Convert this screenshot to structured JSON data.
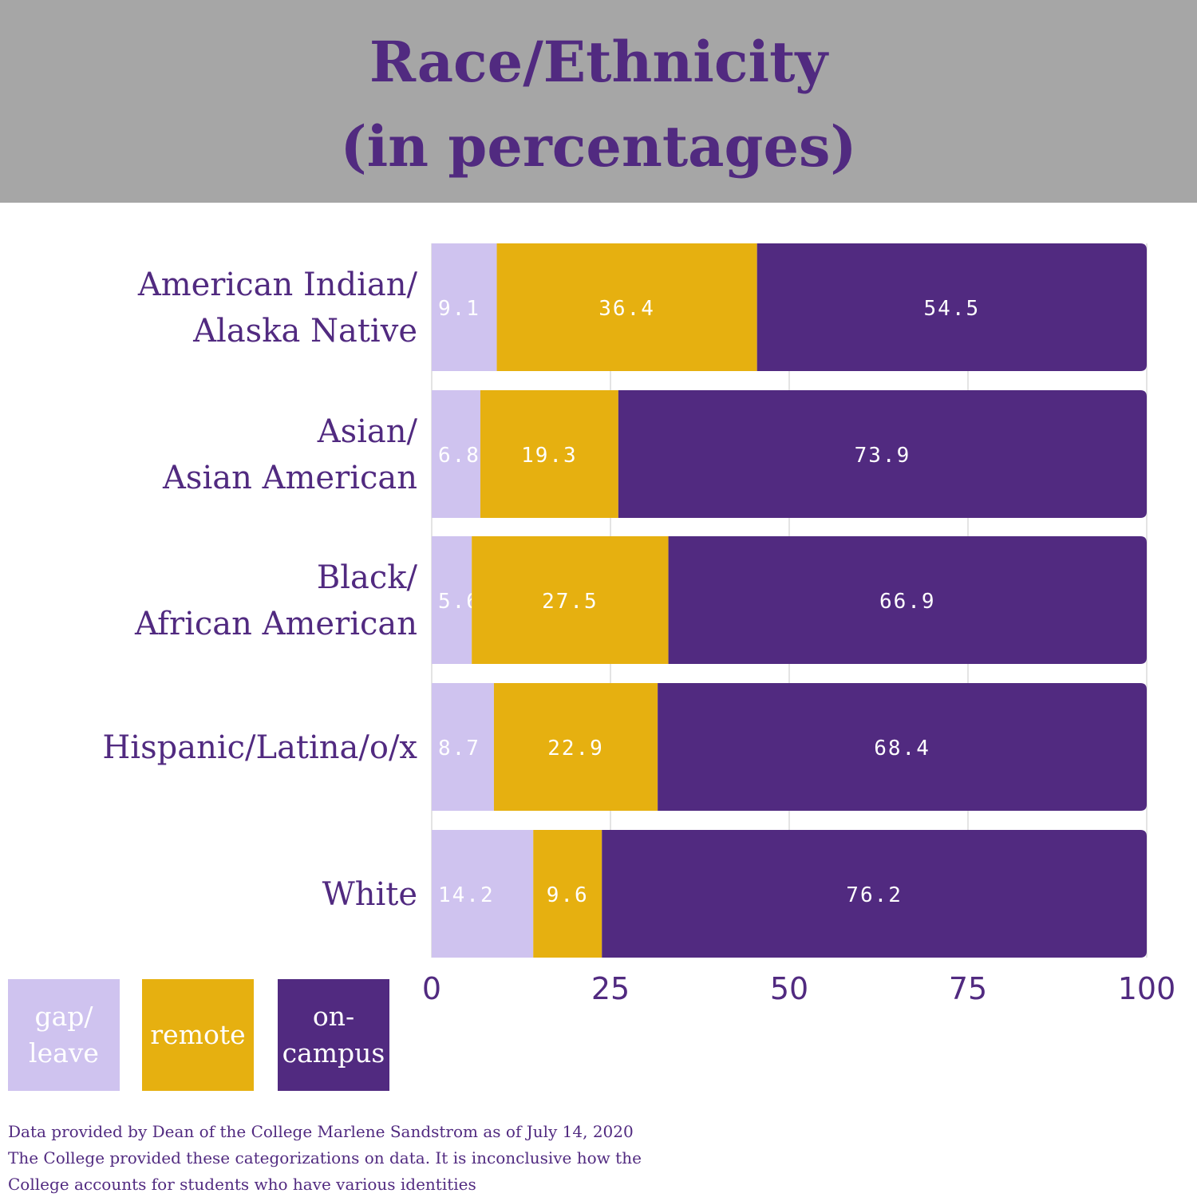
{
  "title": {
    "line1": "Race/Ethnicity",
    "line2": "(in percentages)"
  },
  "colors": {
    "header_bg": "#a6a6a6",
    "text": "#512a80",
    "gap_leave": "#cfc3ef",
    "remote": "#e6b010",
    "on_campus": "#512a80",
    "gridline": "#dcdcdc"
  },
  "legend": [
    {
      "key": "gap_leave",
      "label": "gap/\nleave"
    },
    {
      "key": "remote",
      "label": "remote"
    },
    {
      "key": "on_campus",
      "label": "on-\ncampus"
    }
  ],
  "chart_data": {
    "type": "bar",
    "orientation": "horizontal",
    "stacked": true,
    "title": "Race/Ethnicity (in percentages)",
    "categories": [
      [
        "American Indian/",
        "Alaska Native"
      ],
      [
        "Asian/",
        "Asian American"
      ],
      [
        "Black/",
        "African American"
      ],
      [
        "Hispanic/Latina/o/x"
      ],
      [
        "White"
      ]
    ],
    "series": [
      {
        "name": "gap/ leave",
        "key": "gap_leave",
        "values": [
          9.1,
          6.8,
          5.6,
          8.7,
          14.2
        ]
      },
      {
        "name": "remote",
        "key": "remote",
        "values": [
          36.4,
          19.3,
          27.5,
          22.9,
          9.6
        ]
      },
      {
        "name": "on-campus",
        "key": "on_campus",
        "values": [
          54.5,
          73.9,
          66.9,
          68.4,
          76.2
        ]
      }
    ],
    "xlim": [
      0,
      100
    ],
    "xticks": [
      0,
      25,
      50,
      75,
      100
    ],
    "xlabel": "",
    "ylabel": "",
    "grid": true,
    "legend_position": "bottom-left"
  },
  "footnote": [
    "Data provided by Dean of the College Marlene Sandstrom as of July 14, 2020",
    "The College provided these categorizations on data. It is inconclusive how the",
    "College accounts for students who have various identities"
  ]
}
